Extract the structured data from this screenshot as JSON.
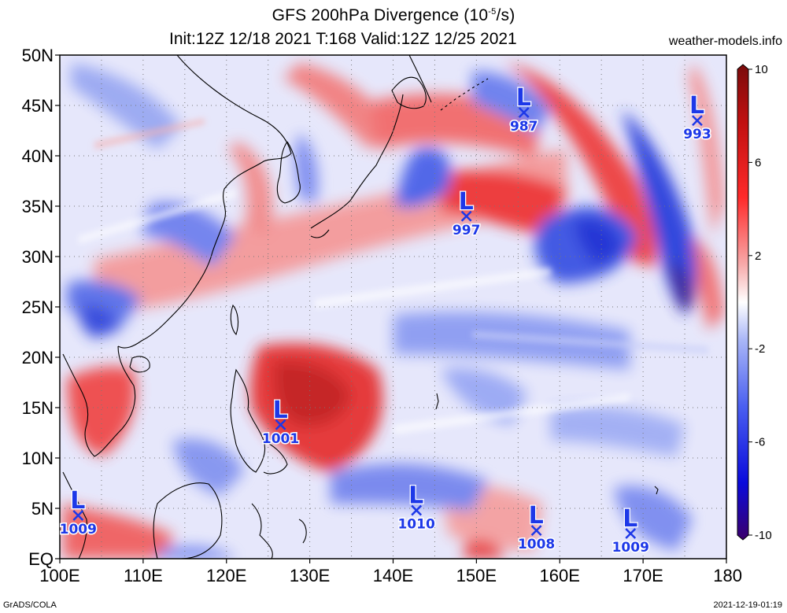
{
  "title": {
    "line1_prefix": "GFS 200hPa Divergence (10",
    "line1_exp": "-5",
    "line1_suffix": "/s)",
    "line2": "Init:12Z 12/18 2021 T:168 Valid:12Z 12/25 2021"
  },
  "site": "weather-models.info",
  "footer": {
    "left": "GrADS/COLA",
    "right": "2021-12-19-01:19"
  },
  "map": {
    "lon_range": [
      100,
      180
    ],
    "lat_range": [
      0,
      50
    ],
    "lat_ticks": [
      {
        "value": 50,
        "label": "50N"
      },
      {
        "value": 45,
        "label": "45N"
      },
      {
        "value": 40,
        "label": "40N"
      },
      {
        "value": 35,
        "label": "35N"
      },
      {
        "value": 30,
        "label": "30N"
      },
      {
        "value": 25,
        "label": "25N"
      },
      {
        "value": 20,
        "label": "20N"
      },
      {
        "value": 15,
        "label": "15N"
      },
      {
        "value": 10,
        "label": "10N"
      },
      {
        "value": 5,
        "label": "5N"
      },
      {
        "value": 0,
        "label": "EQ"
      }
    ],
    "lon_ticks": [
      {
        "value": 100,
        "label": "100E"
      },
      {
        "value": 110,
        "label": "110E"
      },
      {
        "value": 120,
        "label": "120E"
      },
      {
        "value": 130,
        "label": "130E"
      },
      {
        "value": 140,
        "label": "140E"
      },
      {
        "value": 150,
        "label": "150E"
      },
      {
        "value": 160,
        "label": "160E"
      },
      {
        "value": 170,
        "label": "170E"
      },
      {
        "value": 180,
        "label": "180"
      }
    ],
    "lows": [
      {
        "symbol": "L",
        "pressure": "987",
        "lon": 155.7,
        "lat": 44.3
      },
      {
        "symbol": "L",
        "pressure": "993",
        "lon": 176.5,
        "lat": 43.5
      },
      {
        "symbol": "L",
        "pressure": "997",
        "lon": 148.8,
        "lat": 34.0
      },
      {
        "symbol": "L",
        "pressure": "1001",
        "lon": 126.5,
        "lat": 13.3
      },
      {
        "symbol": "L",
        "pressure": "1009",
        "lon": 102.2,
        "lat": 4.3
      },
      {
        "symbol": "L",
        "pressure": "1010",
        "lon": 142.8,
        "lat": 4.8
      },
      {
        "symbol": "L",
        "pressure": "1008",
        "lon": 157.2,
        "lat": 2.8
      },
      {
        "symbol": "L",
        "pressure": "1009",
        "lon": 168.5,
        "lat": 2.5
      }
    ]
  },
  "colorbar": {
    "min": -10,
    "max": 10,
    "labels": [
      {
        "value": 10,
        "label": "10"
      },
      {
        "value": 6,
        "label": "6"
      },
      {
        "value": 2,
        "label": "2"
      },
      {
        "value": -2,
        "label": "-2"
      },
      {
        "value": -6,
        "label": "-6"
      },
      {
        "value": -10,
        "label": "-10"
      }
    ],
    "colors": [
      "#3b006b",
      "#0a0adc",
      "#4a5ff0",
      "#a9b6f7",
      "#ffffff",
      "#f7a9a9",
      "#ff2a2a",
      "#c01010",
      "#7a0c0c"
    ]
  }
}
